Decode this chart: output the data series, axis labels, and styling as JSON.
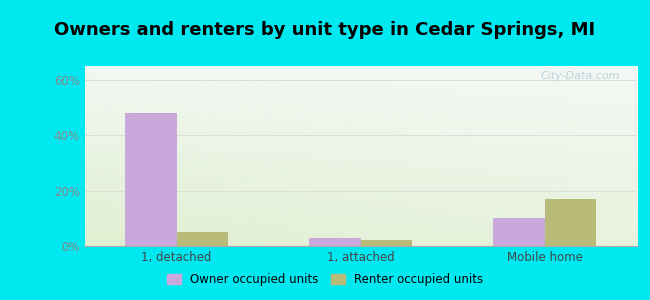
{
  "title": "Owners and renters by unit type in Cedar Springs, MI",
  "categories": [
    "1, detached",
    "1, attached",
    "Mobile home"
  ],
  "owner_values": [
    48,
    3,
    10
  ],
  "renter_values": [
    5,
    2,
    17
  ],
  "owner_color": "#c9a8dc",
  "renter_color": "#b8bc78",
  "owner_label": "Owner occupied units",
  "renter_label": "Renter occupied units",
  "yticks": [
    0,
    20,
    40,
    60
  ],
  "ylim": [
    0,
    65
  ],
  "outer_background": "#00e8f0",
  "bar_width": 0.28,
  "title_fontsize": 13,
  "watermark_color": "#b0ccd8",
  "tick_color": "#888888",
  "grid_color": "#dddddd"
}
